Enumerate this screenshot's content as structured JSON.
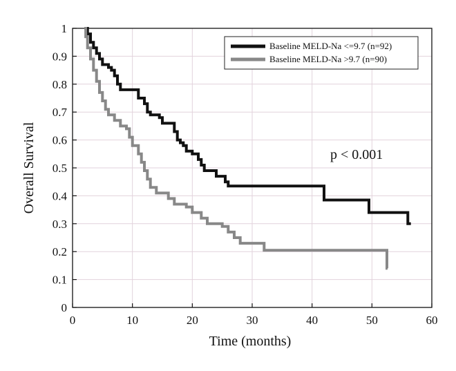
{
  "chart_data": {
    "type": "line",
    "title": "",
    "xlabel": "Time (months)",
    "ylabel": "Overall Survival",
    "xlim": [
      0,
      60
    ],
    "ylim": [
      0,
      1
    ],
    "xticks": [
      0,
      10,
      20,
      30,
      40,
      50,
      60
    ],
    "yticks": [
      0,
      0.1,
      0.2,
      0.3,
      0.4,
      0.5,
      0.6,
      0.7,
      0.8,
      0.9,
      1
    ],
    "xtick_labels": [
      "0",
      "10",
      "20",
      "30",
      "40",
      "50",
      "60"
    ],
    "ytick_labels": [
      "0",
      "0.1",
      "0.2",
      "0.3",
      "0.4",
      "0.5",
      "0.6",
      "0.7",
      "0.8",
      "0.9",
      "1"
    ],
    "grid": true,
    "legend_position": "top-right",
    "annotation": "p < 0.001",
    "series": [
      {
        "name": "Baseline MELD-Na <=9.7 (n=92)",
        "color": "#111111",
        "step": true,
        "points": [
          [
            2,
            1.0
          ],
          [
            2.5,
            0.98
          ],
          [
            3,
            0.95
          ],
          [
            3.5,
            0.93
          ],
          [
            4,
            0.91
          ],
          [
            4.5,
            0.89
          ],
          [
            5,
            0.87
          ],
          [
            6,
            0.86
          ],
          [
            6.5,
            0.85
          ],
          [
            7,
            0.83
          ],
          [
            7.5,
            0.8
          ],
          [
            8,
            0.78
          ],
          [
            10,
            0.78
          ],
          [
            11,
            0.75
          ],
          [
            12,
            0.73
          ],
          [
            12.5,
            0.7
          ],
          [
            13,
            0.69
          ],
          [
            14.5,
            0.68
          ],
          [
            15,
            0.66
          ],
          [
            17,
            0.63
          ],
          [
            17.5,
            0.6
          ],
          [
            18,
            0.59
          ],
          [
            18.5,
            0.58
          ],
          [
            19,
            0.56
          ],
          [
            20,
            0.55
          ],
          [
            21,
            0.53
          ],
          [
            21.5,
            0.51
          ],
          [
            22,
            0.49
          ],
          [
            24,
            0.47
          ],
          [
            25.5,
            0.45
          ],
          [
            26,
            0.435
          ],
          [
            42,
            0.385
          ],
          [
            49.5,
            0.34
          ],
          [
            56,
            0.3
          ],
          [
            56.5,
            0.3
          ]
        ]
      },
      {
        "name": "Baseline MELD-Na >9.7 (n=90)",
        "color": "#888888",
        "step": true,
        "points": [
          [
            2,
            1.0
          ],
          [
            2.2,
            0.97
          ],
          [
            2.5,
            0.93
          ],
          [
            3,
            0.89
          ],
          [
            3.5,
            0.85
          ],
          [
            4,
            0.81
          ],
          [
            4.5,
            0.77
          ],
          [
            5,
            0.74
          ],
          [
            5.5,
            0.71
          ],
          [
            6,
            0.69
          ],
          [
            7,
            0.67
          ],
          [
            8,
            0.65
          ],
          [
            9,
            0.64
          ],
          [
            9.5,
            0.61
          ],
          [
            10,
            0.58
          ],
          [
            11,
            0.55
          ],
          [
            11.5,
            0.52
          ],
          [
            12,
            0.49
          ],
          [
            12.5,
            0.46
          ],
          [
            13,
            0.43
          ],
          [
            14,
            0.41
          ],
          [
            16,
            0.39
          ],
          [
            17,
            0.37
          ],
          [
            19,
            0.36
          ],
          [
            20,
            0.34
          ],
          [
            21.5,
            0.32
          ],
          [
            22.5,
            0.3
          ],
          [
            25,
            0.29
          ],
          [
            26,
            0.27
          ],
          [
            27,
            0.25
          ],
          [
            28,
            0.23
          ],
          [
            32,
            0.205
          ],
          [
            52.5,
            0.14
          ],
          [
            52.6,
            0.14
          ]
        ]
      }
    ]
  }
}
